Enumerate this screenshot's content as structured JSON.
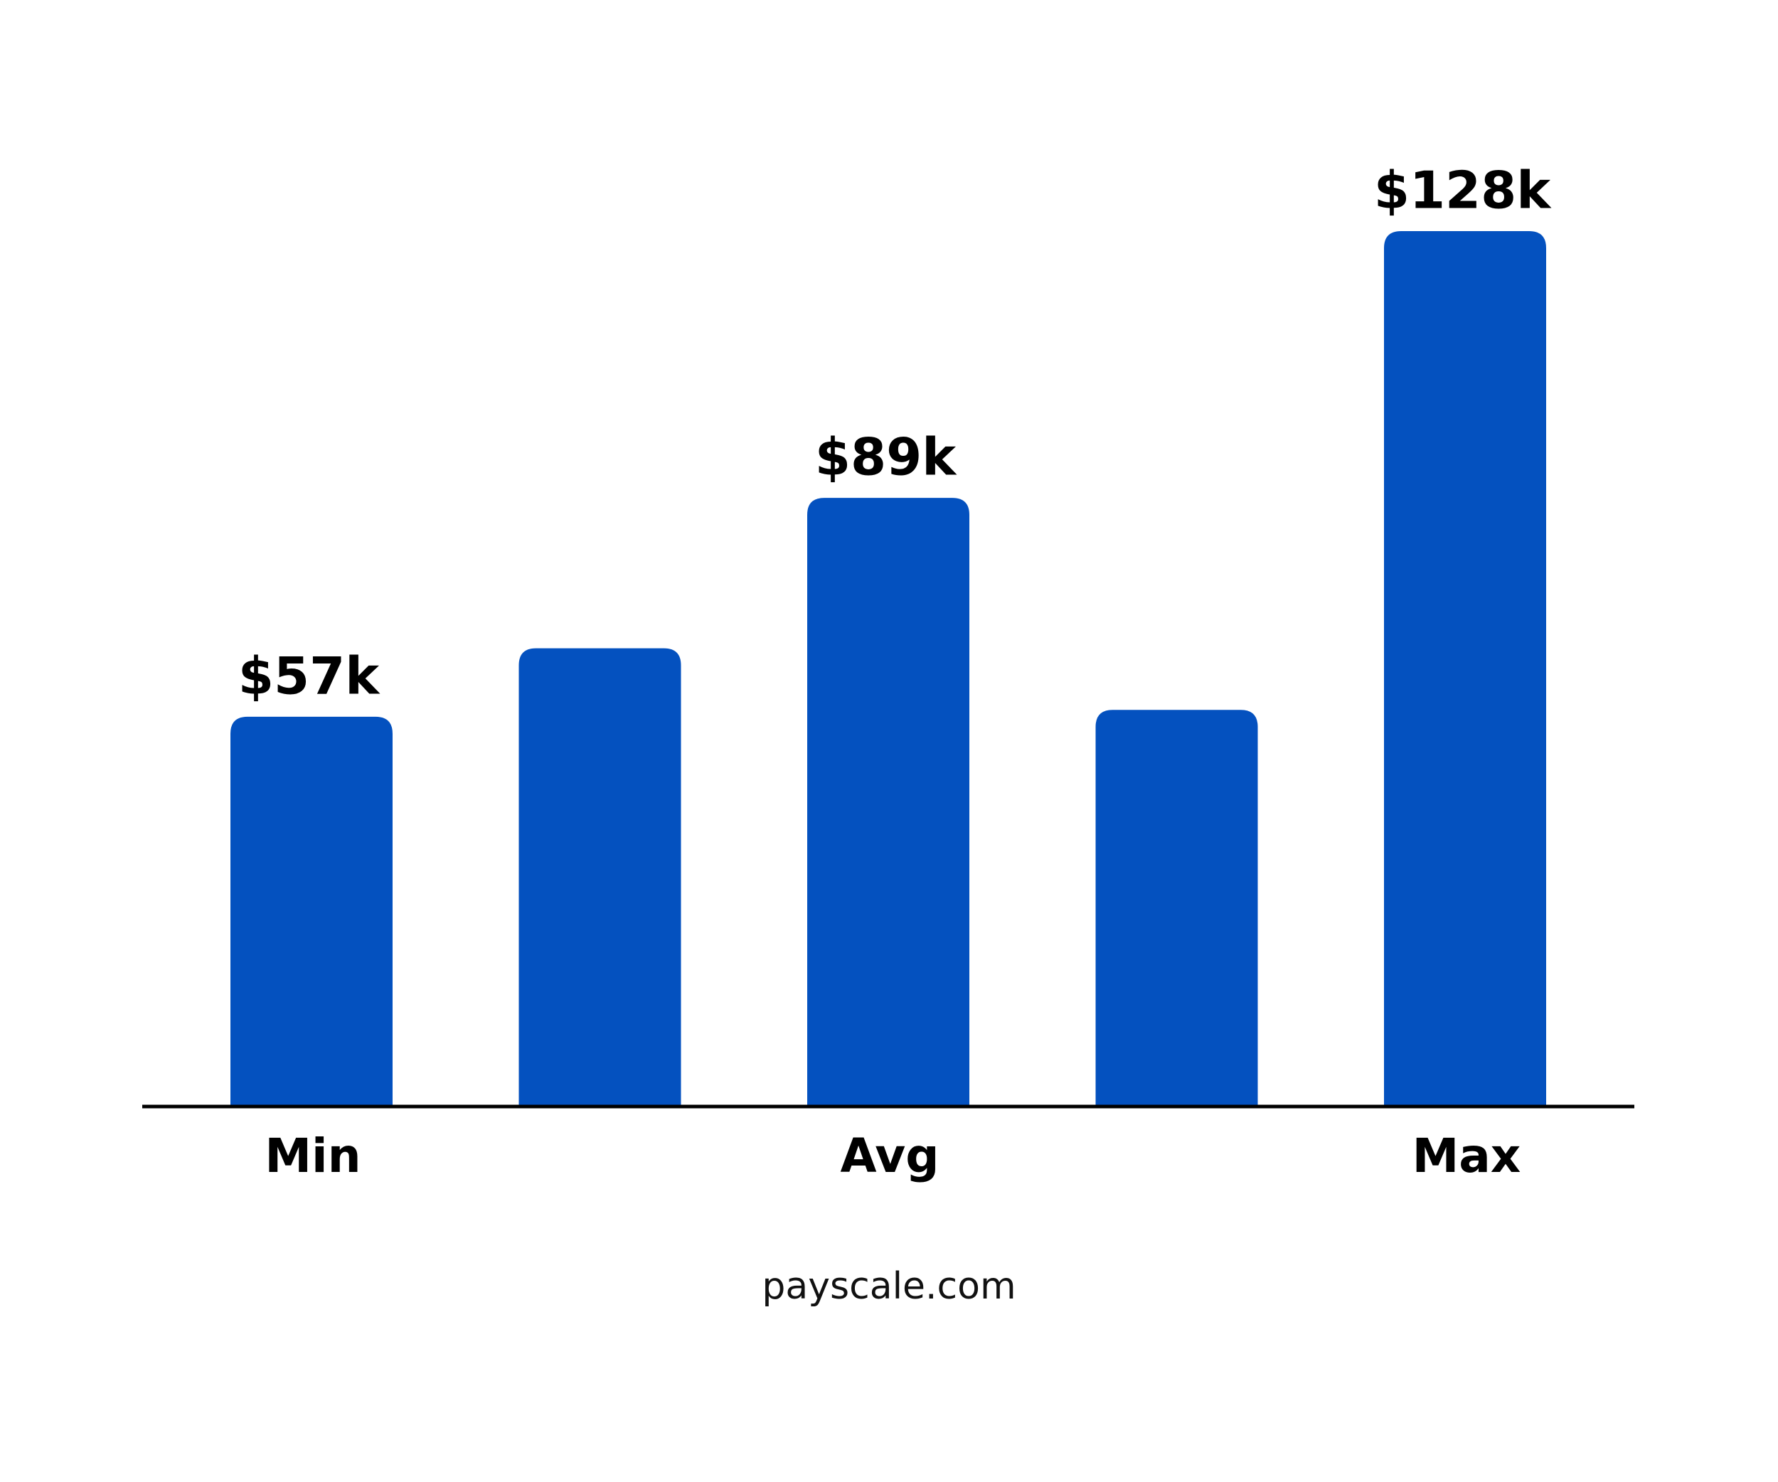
{
  "chart_data": {
    "type": "bar",
    "categories": [
      "Min",
      null,
      "Avg",
      null,
      "Max"
    ],
    "values": [
      57,
      67,
      89,
      58,
      128
    ],
    "value_labels": [
      "$57k",
      null,
      "$89k",
      null,
      "$128k"
    ],
    "color": "#0451bf",
    "source": "payscale.com"
  }
}
